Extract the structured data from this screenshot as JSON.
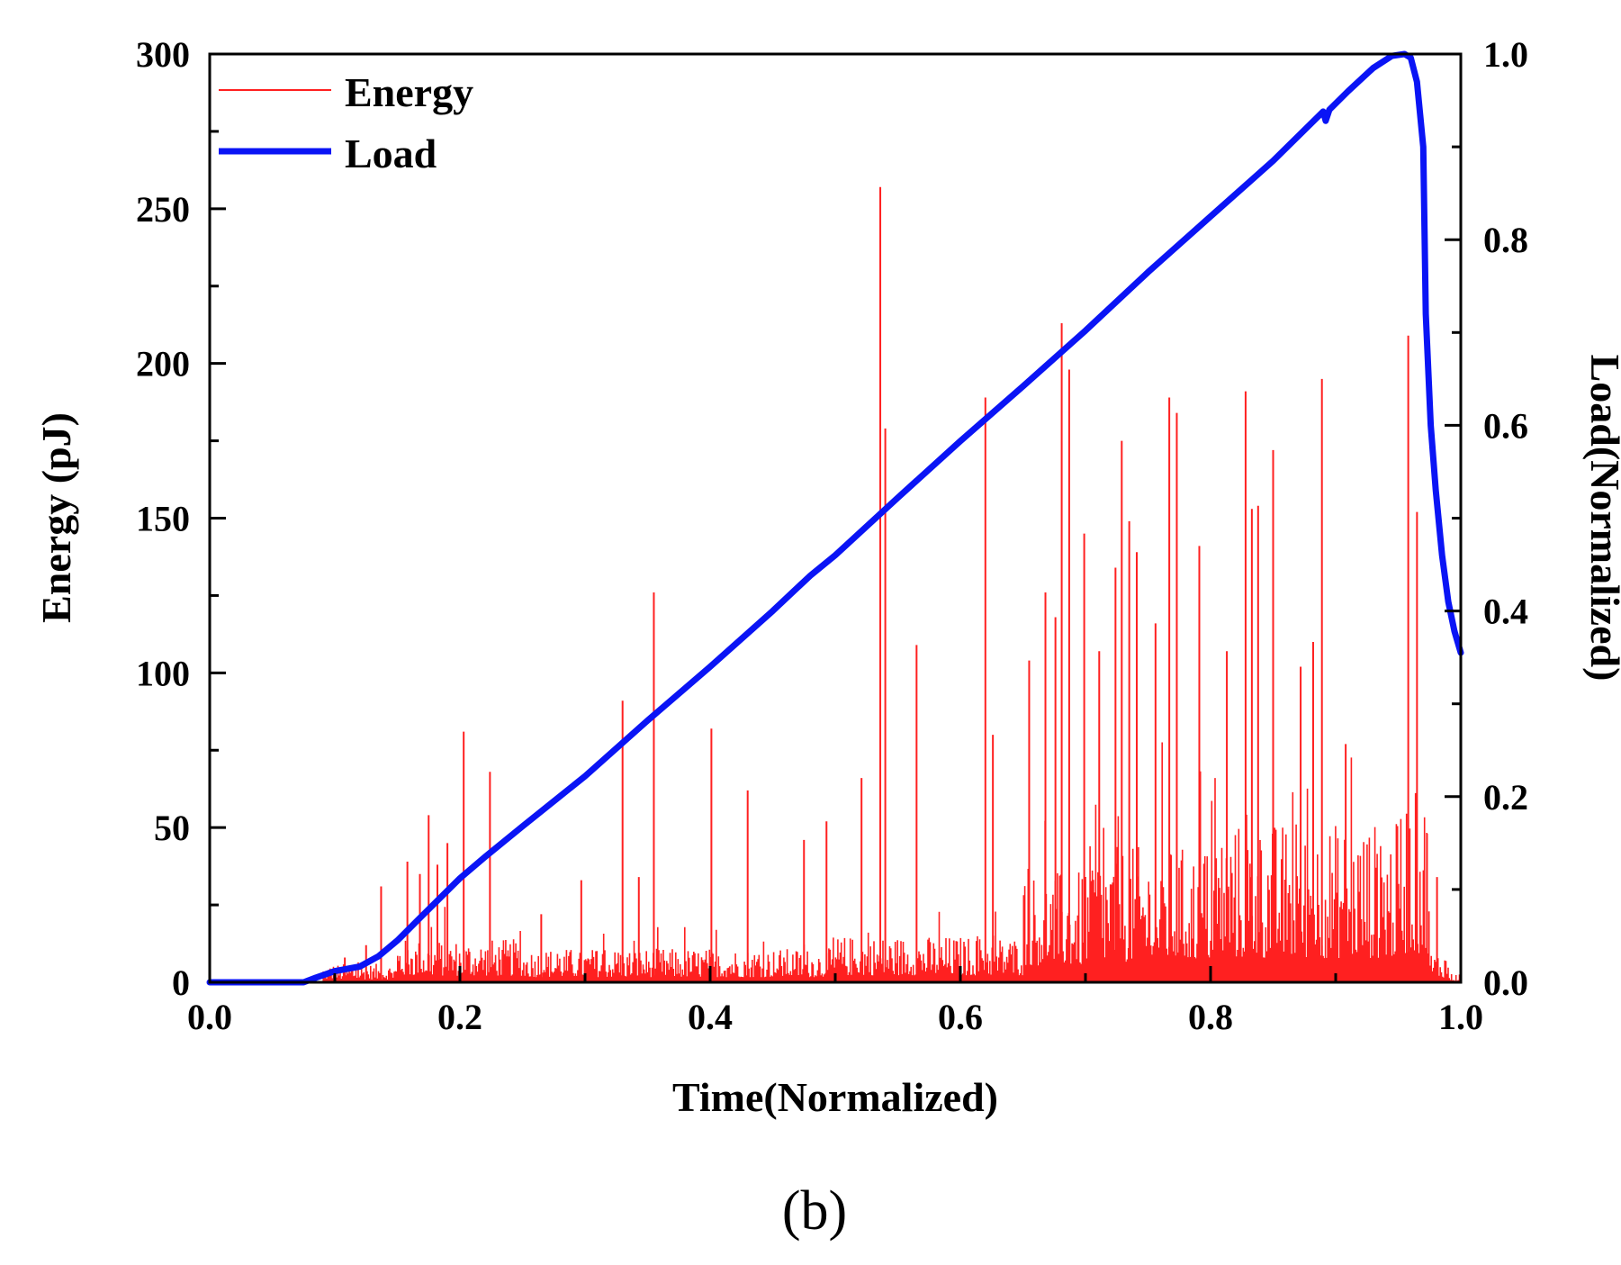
{
  "chart_data": {
    "type": "line",
    "panel_label": "(b)",
    "xlabel": "Time(Normalized)",
    "ylabel": "Energy (pJ)",
    "y2label": "Load(Normalized)",
    "xlim": [
      0.0,
      1.0
    ],
    "ylim": [
      0,
      300
    ],
    "y2lim": [
      0.0,
      1.0
    ],
    "x_ticks": [
      "0.0",
      "0.2",
      "0.4",
      "0.6",
      "0.8",
      "1.0"
    ],
    "y_ticks": [
      "0",
      "50",
      "100",
      "150",
      "200",
      "250",
      "300"
    ],
    "y2_ticks": [
      "0.0",
      "0.2",
      "0.4",
      "0.6",
      "0.8",
      "1.0"
    ],
    "legend_position": "top-left",
    "legend": [
      "Energy",
      "Load"
    ],
    "series": [
      {
        "name": "Energy",
        "axis": "left",
        "style": "thin",
        "color": "#ff2020",
        "peaks": [
          {
            "x": 0.108,
            "y": 8
          },
          {
            "x": 0.125,
            "y": 12
          },
          {
            "x": 0.137,
            "y": 31
          },
          {
            "x": 0.158,
            "y": 39
          },
          {
            "x": 0.168,
            "y": 35
          },
          {
            "x": 0.175,
            "y": 54
          },
          {
            "x": 0.182,
            "y": 38
          },
          {
            "x": 0.19,
            "y": 45
          },
          {
            "x": 0.203,
            "y": 81
          },
          {
            "x": 0.224,
            "y": 68
          },
          {
            "x": 0.265,
            "y": 22
          },
          {
            "x": 0.297,
            "y": 33
          },
          {
            "x": 0.33,
            "y": 91
          },
          {
            "x": 0.343,
            "y": 34
          },
          {
            "x": 0.355,
            "y": 126
          },
          {
            "x": 0.401,
            "y": 82
          },
          {
            "x": 0.43,
            "y": 62
          },
          {
            "x": 0.475,
            "y": 46
          },
          {
            "x": 0.493,
            "y": 52
          },
          {
            "x": 0.521,
            "y": 66
          },
          {
            "x": 0.536,
            "y": 257
          },
          {
            "x": 0.54,
            "y": 179
          },
          {
            "x": 0.565,
            "y": 109
          },
          {
            "x": 0.62,
            "y": 189
          },
          {
            "x": 0.626,
            "y": 80
          },
          {
            "x": 0.655,
            "y": 104
          },
          {
            "x": 0.668,
            "y": 126
          },
          {
            "x": 0.676,
            "y": 118
          },
          {
            "x": 0.681,
            "y": 213
          },
          {
            "x": 0.687,
            "y": 198
          },
          {
            "x": 0.699,
            "y": 145
          },
          {
            "x": 0.711,
            "y": 107
          },
          {
            "x": 0.724,
            "y": 134
          },
          {
            "x": 0.729,
            "y": 175
          },
          {
            "x": 0.735,
            "y": 149
          },
          {
            "x": 0.741,
            "y": 139
          },
          {
            "x": 0.756,
            "y": 116
          },
          {
            "x": 0.767,
            "y": 189
          },
          {
            "x": 0.773,
            "y": 184
          },
          {
            "x": 0.791,
            "y": 141
          },
          {
            "x": 0.813,
            "y": 107
          },
          {
            "x": 0.828,
            "y": 191
          },
          {
            "x": 0.833,
            "y": 153
          },
          {
            "x": 0.838,
            "y": 154
          },
          {
            "x": 0.85,
            "y": 172
          },
          {
            "x": 0.872,
            "y": 102
          },
          {
            "x": 0.882,
            "y": 110
          },
          {
            "x": 0.889,
            "y": 195
          },
          {
            "x": 0.908,
            "y": 77
          },
          {
            "x": 0.958,
            "y": 209
          },
          {
            "x": 0.965,
            "y": 152
          },
          {
            "x": 0.973,
            "y": 48
          },
          {
            "x": 0.981,
            "y": 34
          }
        ]
      },
      {
        "name": "Load",
        "axis": "right",
        "style": "thick",
        "color": "#0a14f5",
        "points": [
          {
            "x": 0.0,
            "y": 0.0
          },
          {
            "x": 0.075,
            "y": 0.0
          },
          {
            "x": 0.085,
            "y": 0.005
          },
          {
            "x": 0.1,
            "y": 0.012
          },
          {
            "x": 0.12,
            "y": 0.017
          },
          {
            "x": 0.135,
            "y": 0.028
          },
          {
            "x": 0.15,
            "y": 0.045
          },
          {
            "x": 0.17,
            "y": 0.072
          },
          {
            "x": 0.2,
            "y": 0.112
          },
          {
            "x": 0.22,
            "y": 0.135
          },
          {
            "x": 0.25,
            "y": 0.168
          },
          {
            "x": 0.3,
            "y": 0.222
          },
          {
            "x": 0.35,
            "y": 0.282
          },
          {
            "x": 0.4,
            "y": 0.34
          },
          {
            "x": 0.45,
            "y": 0.4
          },
          {
            "x": 0.48,
            "y": 0.438
          },
          {
            "x": 0.5,
            "y": 0.46
          },
          {
            "x": 0.55,
            "y": 0.522
          },
          {
            "x": 0.6,
            "y": 0.583
          },
          {
            "x": 0.65,
            "y": 0.642
          },
          {
            "x": 0.7,
            "y": 0.702
          },
          {
            "x": 0.75,
            "y": 0.765
          },
          {
            "x": 0.8,
            "y": 0.825
          },
          {
            "x": 0.85,
            "y": 0.885
          },
          {
            "x": 0.89,
            "y": 0.938
          },
          {
            "x": 0.892,
            "y": 0.928
          },
          {
            "x": 0.895,
            "y": 0.94
          },
          {
            "x": 0.91,
            "y": 0.96
          },
          {
            "x": 0.93,
            "y": 0.985
          },
          {
            "x": 0.945,
            "y": 0.998
          },
          {
            "x": 0.955,
            "y": 1.0
          },
          {
            "x": 0.96,
            "y": 0.996
          },
          {
            "x": 0.965,
            "y": 0.97
          },
          {
            "x": 0.97,
            "y": 0.9
          },
          {
            "x": 0.972,
            "y": 0.72
          },
          {
            "x": 0.976,
            "y": 0.6
          },
          {
            "x": 0.98,
            "y": 0.53
          },
          {
            "x": 0.985,
            "y": 0.46
          },
          {
            "x": 0.99,
            "y": 0.41
          },
          {
            "x": 0.995,
            "y": 0.378
          },
          {
            "x": 1.0,
            "y": 0.355
          }
        ]
      }
    ]
  }
}
